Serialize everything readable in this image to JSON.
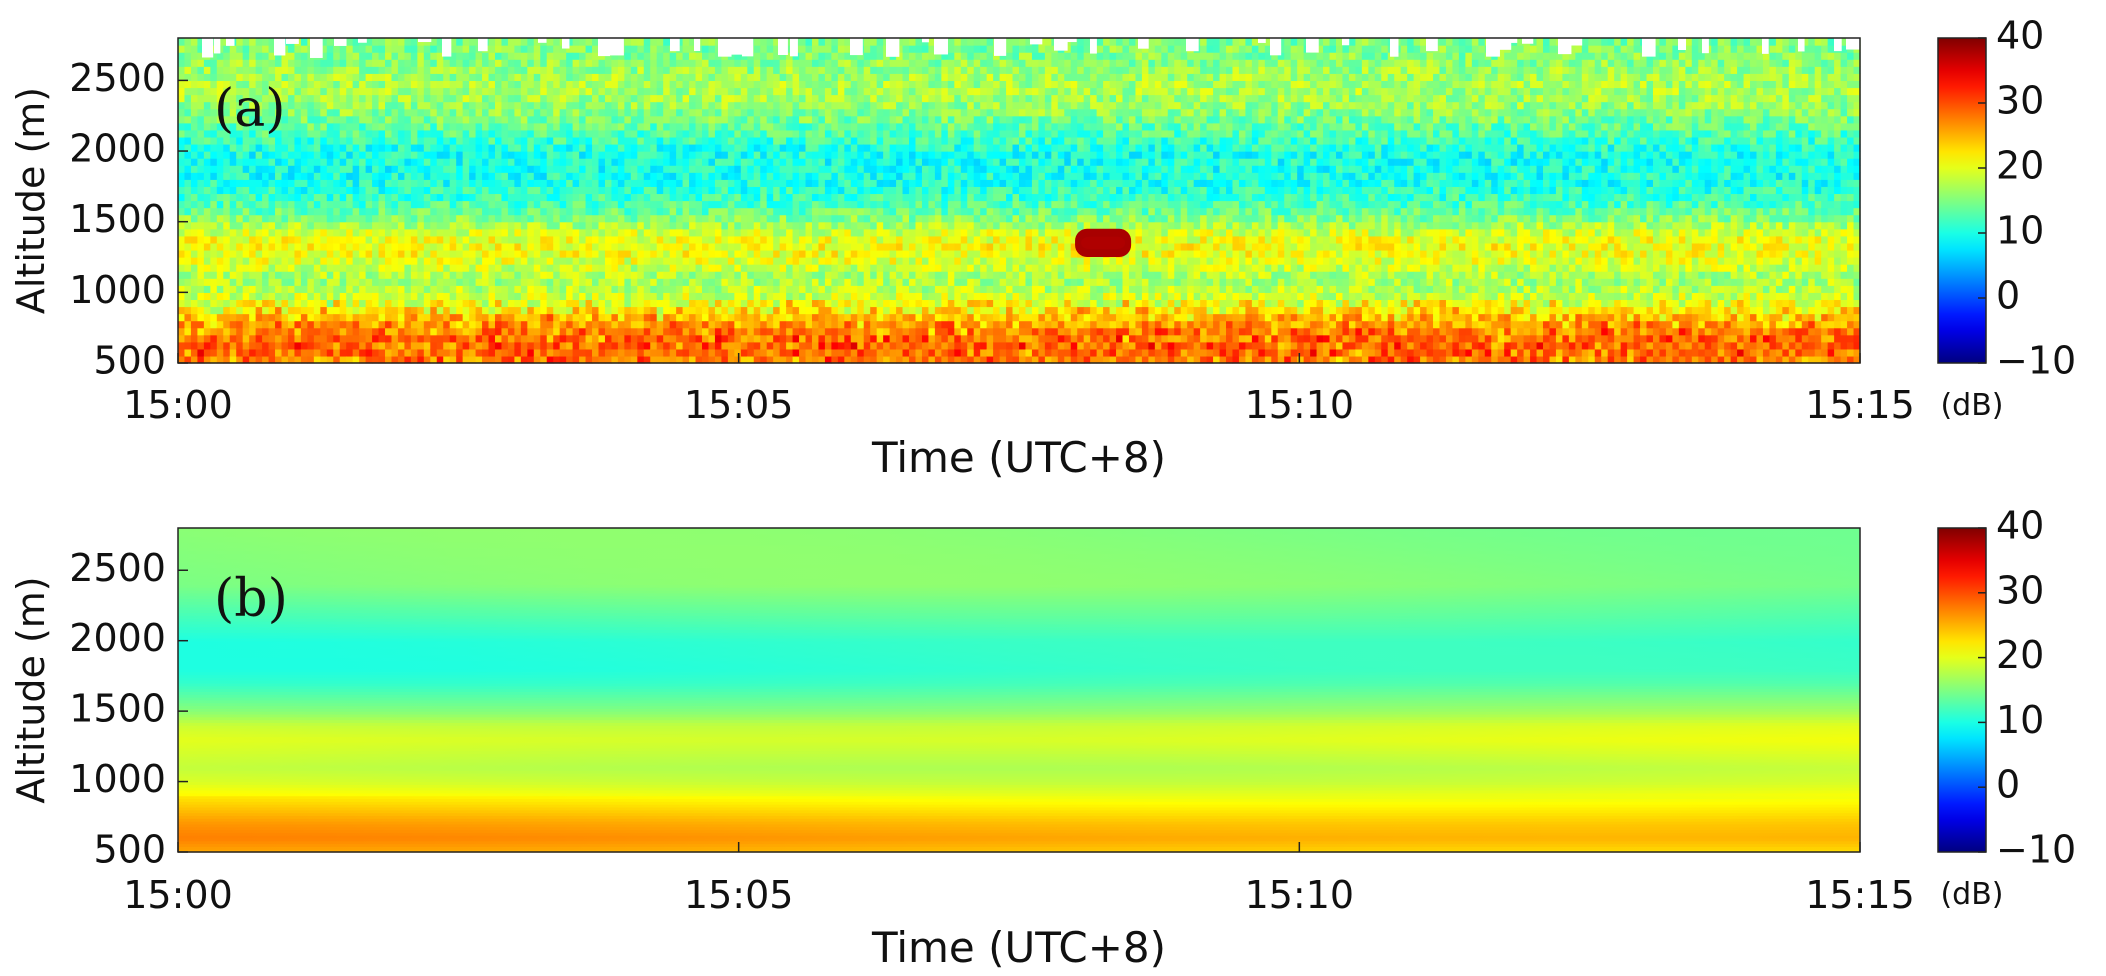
{
  "chart_data": [
    {
      "type": "heatmap",
      "panel_label": "(a)",
      "xlabel": "Time (UTC+8)",
      "ylabel": "Altitude (m)",
      "x_ticks": [
        "15:00",
        "15:05",
        "15:10",
        "15:15"
      ],
      "x_range": [
        "15:00",
        "15:15"
      ],
      "y_ticks": [
        500,
        1000,
        1500,
        2000,
        2500
      ],
      "ylim": [
        500,
        2800
      ],
      "colorbar": {
        "ticks": [
          40,
          30,
          20,
          10,
          0,
          -10
        ],
        "range": [
          -10,
          40
        ],
        "unit": "(dB)",
        "colormap": "jet"
      },
      "profile_db": {
        "altitude_m": [
          500,
          600,
          700,
          800,
          900,
          1000,
          1100,
          1200,
          1300,
          1400,
          1500,
          1600,
          1700,
          1800,
          1900,
          2000,
          2100,
          2200,
          2300,
          2400,
          2500,
          2600,
          2700,
          2800
        ],
        "value": [
          27,
          29,
          28,
          25,
          21,
          18,
          17,
          19,
          21,
          20,
          16,
          13,
          11,
          10,
          10,
          10,
          12,
          14,
          16,
          17,
          17,
          16,
          15,
          15
        ]
      },
      "features": [
        {
          "label": "strong echo",
          "time_start": "15:08:00",
          "time_end": "15:08:30",
          "altitude_min": 1250,
          "altitude_max": 1450,
          "value_db": 38
        }
      ],
      "grid": false
    },
    {
      "type": "heatmap",
      "panel_label": "(b)",
      "xlabel": "Time (UTC+8)",
      "ylabel": "Altitude (m)",
      "x_ticks": [
        "15:00",
        "15:05",
        "15:10",
        "15:15"
      ],
      "x_range": [
        "15:00",
        "15:15"
      ],
      "y_ticks": [
        500,
        1000,
        1500,
        2000,
        2500
      ],
      "ylim": [
        500,
        2800
      ],
      "colorbar": {
        "ticks": [
          40,
          30,
          20,
          10,
          0,
          -10
        ],
        "range": [
          -10,
          40
        ],
        "unit": "(dB)",
        "colormap": "jet"
      },
      "profile_db": {
        "altitude_m": [
          500,
          600,
          700,
          800,
          900,
          1000,
          1100,
          1200,
          1300,
          1400,
          1500,
          1600,
          1700,
          1800,
          1900,
          2000,
          2100,
          2200,
          2300,
          2400,
          2500,
          2600,
          2700,
          2800
        ],
        "value": [
          24,
          26,
          25,
          23,
          21,
          19,
          18,
          19,
          20,
          19,
          16,
          14,
          12,
          11,
          11,
          11,
          12,
          13,
          14,
          15,
          15,
          15,
          15,
          15
        ]
      },
      "grid": false
    }
  ]
}
